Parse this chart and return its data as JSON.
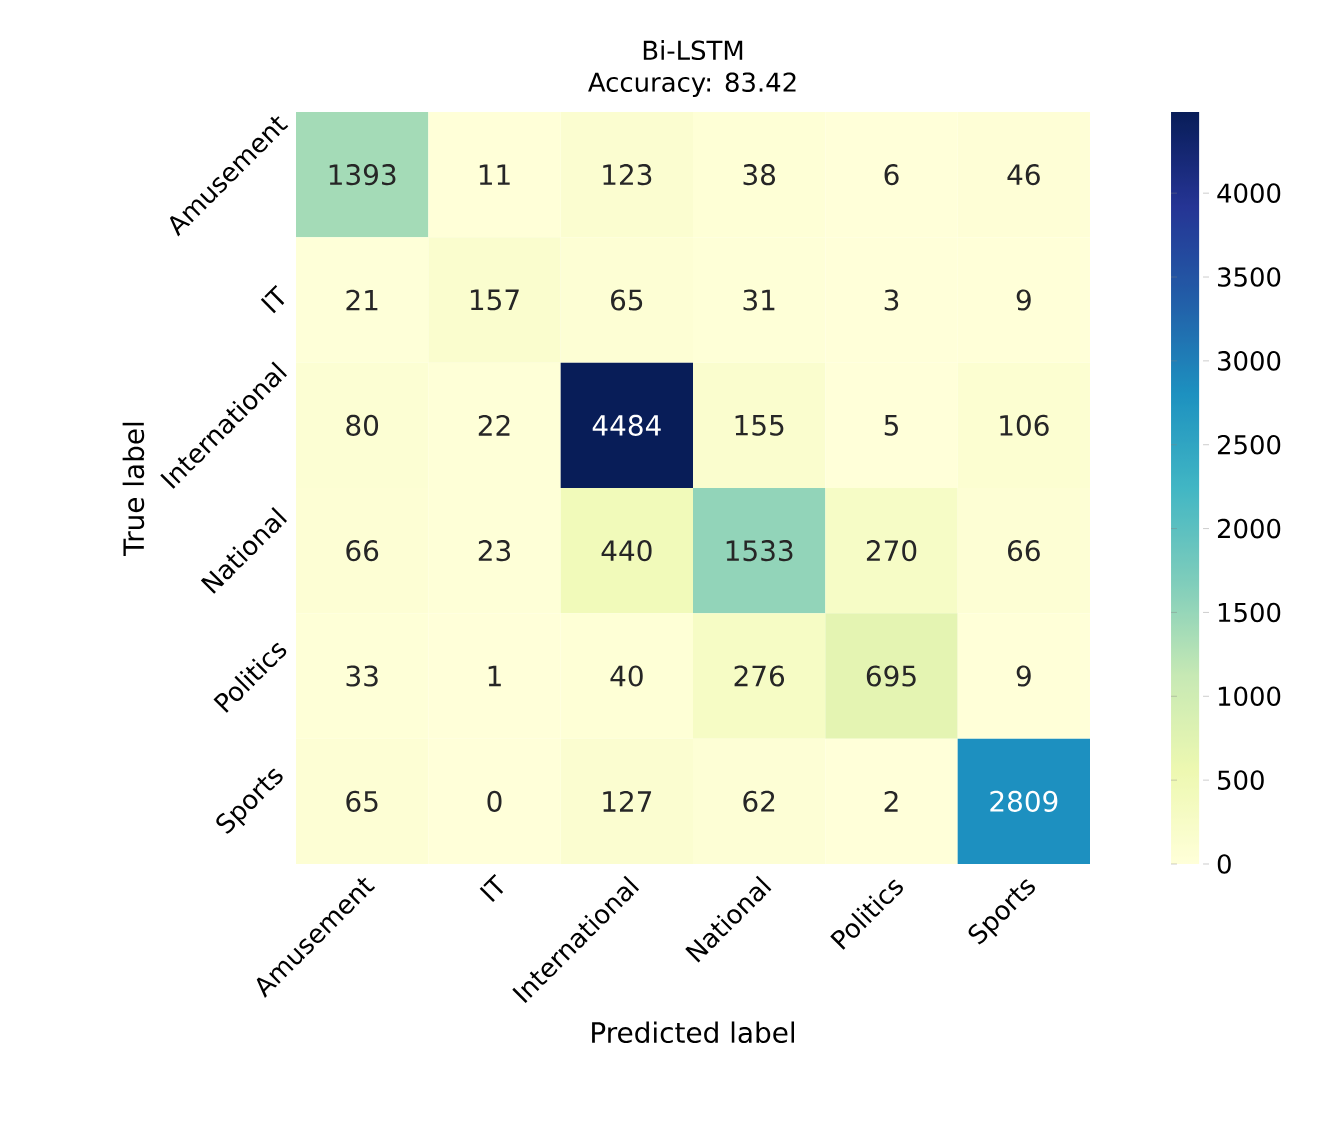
{
  "chart_data": {
    "type": "heatmap",
    "title": "Bi-LSTM",
    "subtitle": "Accuracy: 83.42",
    "xlabel": "Predicted label",
    "ylabel": "True label",
    "categories": [
      "Amusement",
      "IT",
      "International",
      "National",
      "Politics",
      "Sports"
    ],
    "y_categories": [
      "Amusement",
      "IT",
      "International",
      "National",
      "Politics",
      "Sports"
    ],
    "cells": [
      [
        1393,
        11,
        123,
        38,
        6,
        46
      ],
      [
        21,
        157,
        65,
        31,
        3,
        9
      ],
      [
        80,
        22,
        4484,
        155,
        5,
        106
      ],
      [
        66,
        23,
        440,
        1533,
        270,
        66
      ],
      [
        33,
        1,
        40,
        276,
        695,
        9
      ],
      [
        65,
        0,
        127,
        62,
        2,
        2809
      ]
    ],
    "clim": [
      0,
      4484
    ],
    "cticks": [
      0,
      500,
      1000,
      1500,
      2000,
      2500,
      3000,
      3500,
      4000
    ],
    "data_labels": true
  }
}
